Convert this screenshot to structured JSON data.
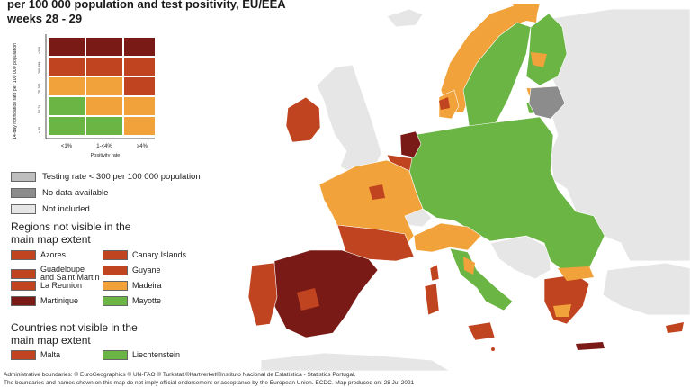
{
  "title_lines": [
    "per 100 000 population and test positivity, EU/EEA",
    "weeks 28 - 29"
  ],
  "colors": {
    "dark_red": "#7a1a16",
    "red": "#c0441f",
    "orange": "#f2a23a",
    "green": "#6ab544",
    "dark_grey": "#8c8c8c",
    "light_grey": "#bfbfbf",
    "not_included": "#e6e6e6",
    "sea": "#ffffff"
  },
  "matrix": {
    "y_axis_label": "14-day notification rate per 100 000 population",
    "row_labels": [
      ">300",
      "200-499",
      "75-200",
      "50-74",
      "< 50"
    ],
    "col_labels": [
      "<1%",
      "1-<4%",
      "≥4%"
    ],
    "x_axis_label": "Positivity rate",
    "cells": [
      [
        "dark_red",
        "dark_red",
        "dark_red"
      ],
      [
        "red",
        "red",
        "red"
      ],
      [
        "orange",
        "orange",
        "red"
      ],
      [
        "green",
        "orange",
        "orange"
      ],
      [
        "green",
        "green",
        "orange"
      ]
    ]
  },
  "legend": {
    "testing_rate": "Testing rate < 300 per 100 000 population",
    "no_data": "No data available",
    "not_included": "Not included"
  },
  "regions_heading": "Regions not visible in the main map extent",
  "regions": [
    {
      "name": "Azores",
      "color": "red"
    },
    {
      "name": "Canary Islands",
      "color": "red"
    },
    {
      "name": "Guadeloupe\nand Saint Martin",
      "color": "red"
    },
    {
      "name": "Guyane",
      "color": "red"
    },
    {
      "name": "La Reunion",
      "color": "red"
    },
    {
      "name": "Madeira",
      "color": "orange"
    },
    {
      "name": "Martinique",
      "color": "dark_red"
    },
    {
      "name": "Mayotte",
      "color": "green"
    }
  ],
  "countries_heading": "Countries not visible in the main map extent",
  "countries": [
    {
      "name": "Malta",
      "color": "red"
    },
    {
      "name": "Liechtenstein",
      "color": "green"
    }
  ],
  "footer": [
    "Administrative boundaries: © EuroGeographics © UN-FAO © Turkstat.©Kartverket©Instituto Nacional de Estatística - Statistics Portugal.",
    "The boundaries and names shown on this map do not imply official endorsement or acceptance by the European Union. ECDC. Map produced on: 28 Jul 2021"
  ]
}
